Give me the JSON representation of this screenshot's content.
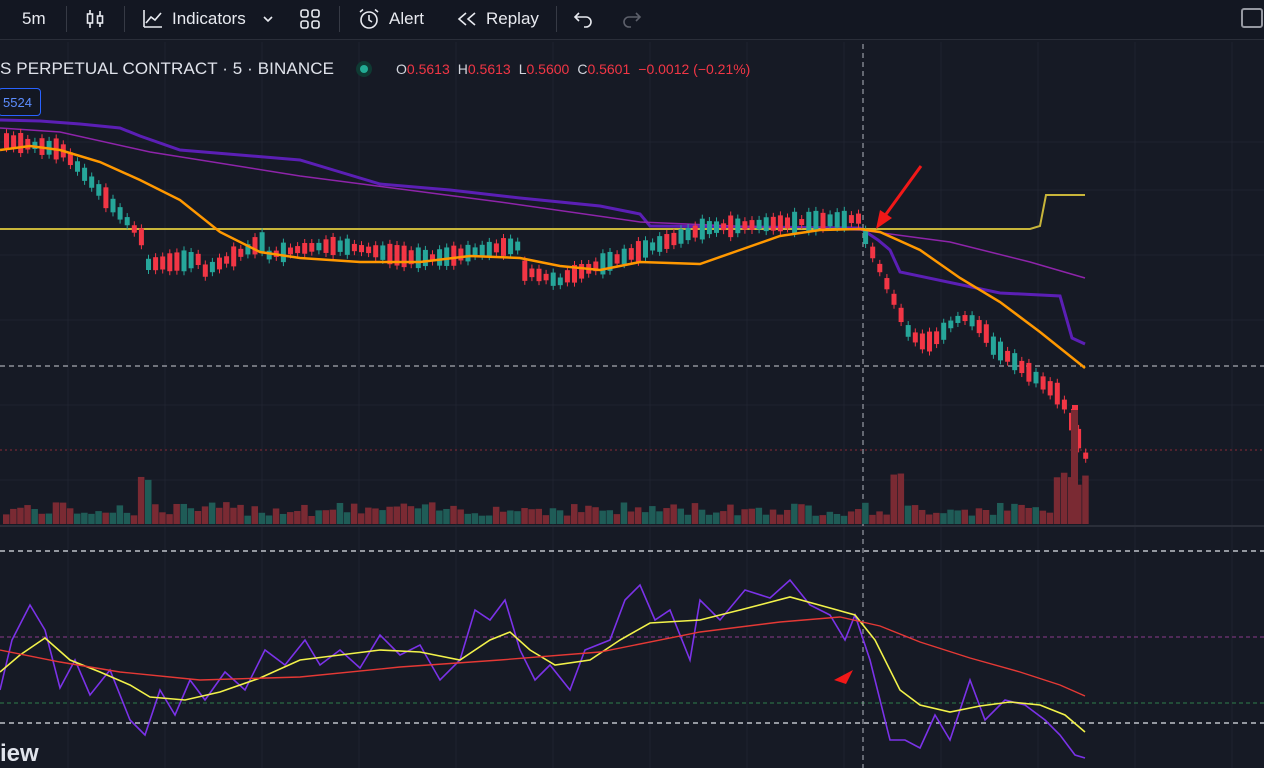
{
  "toolbar": {
    "interval": "5m",
    "chart_type_icon": "candlestick-icon",
    "indicators_label": "Indicators",
    "indicators_chevron": "chevron-down-icon",
    "layout_icon": "grid-icon",
    "alert_label": "Alert",
    "replay_label": "Replay",
    "undo_icon": "undo-icon",
    "redo_icon": "redo-icon"
  },
  "legend": {
    "title": "S PERPETUAL CONTRACT · 5 · BINANCE",
    "status_color": "#22ab94",
    "o_label": "O",
    "o_value": "0.5613",
    "h_label": "H",
    "h_value": "0.5613",
    "l_label": "L",
    "l_value": "0.5600",
    "c_label": "C",
    "c_value": "0.5601",
    "change": "−0.0012 (−0.21%)"
  },
  "price_tag": "5524",
  "watermark": "iew",
  "colors": {
    "bull": "#26a69a",
    "bear": "#f23645",
    "ema": "#ff9800",
    "level": "#c8b53a",
    "band": "#5b1fb5",
    "trend": "#8e24aa",
    "rsi": "#7b32e8",
    "rsi_signal": "#f2f24a",
    "rsi_slow": "#e53935",
    "annotation": "#f21818"
  }
}
